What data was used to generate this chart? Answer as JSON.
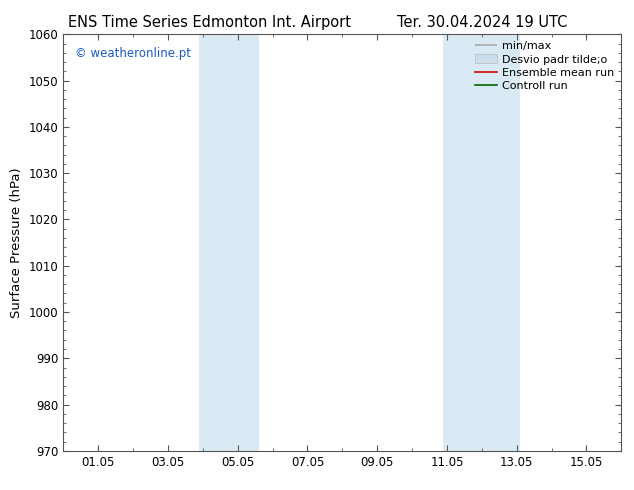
{
  "title_left": "ENS Time Series Edmonton Int. Airport",
  "title_right": "Ter. 30.04.2024 19 UTC",
  "ylabel": "Surface Pressure (hPa)",
  "ylim": [
    970,
    1060
  ],
  "yticks": [
    970,
    980,
    990,
    1000,
    1010,
    1020,
    1030,
    1040,
    1050,
    1060
  ],
  "xlim": [
    0.0,
    16.0
  ],
  "xticks": [
    1,
    3,
    5,
    7,
    9,
    11,
    13,
    15
  ],
  "xticklabels": [
    "01.05",
    "03.05",
    "05.05",
    "07.05",
    "09.05",
    "11.05",
    "13.05",
    "15.05"
  ],
  "shaded_bands": [
    {
      "x_start": 3.9,
      "x_end": 5.6
    },
    {
      "x_start": 10.9,
      "x_end": 13.1
    }
  ],
  "shade_color": "#daeaf5",
  "watermark_text": "© weatheronline.pt",
  "watermark_color": "#1a5bbf",
  "legend_labels": [
    "min/max",
    "Desvio padr tilde;o",
    "Ensemble mean run",
    "Controll run"
  ],
  "legend_line_colors": [
    "#aaaaaa",
    "#ccddee",
    "#cc0000",
    "#006600"
  ],
  "bg_color": "#ffffff",
  "title_fontsize": 10.5,
  "tick_fontsize": 8.5,
  "label_fontsize": 9.5,
  "legend_fontsize": 8
}
